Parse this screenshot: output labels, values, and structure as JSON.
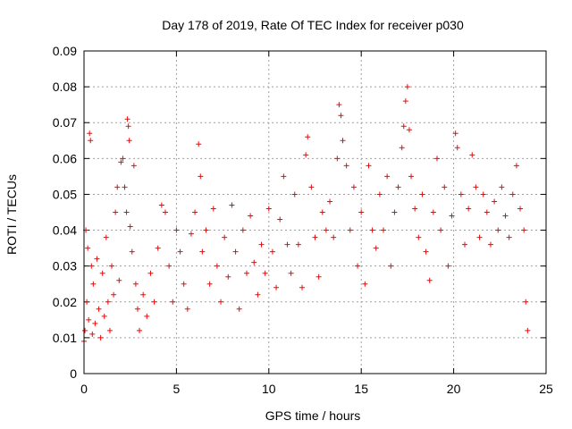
{
  "chart_data": {
    "type": "scatter",
    "title": "Day 178 of 2019, Rate Of TEC Index for receiver p030",
    "xlabel": "GPS time / hours",
    "ylabel": "ROTI / TECUs",
    "xlim": [
      0,
      25
    ],
    "ylim": [
      0,
      0.09
    ],
    "xticks": [
      0,
      5,
      10,
      15,
      20,
      25
    ],
    "xtick_labels": [
      "0",
      "5",
      "10",
      "15",
      "20",
      "25"
    ],
    "yticks": [
      0,
      0.01,
      0.02,
      0.03,
      0.04,
      0.05,
      0.06,
      0.07,
      0.08,
      0.09
    ],
    "ytick_labels": [
      "0",
      "0.01",
      "0.02",
      "0.03",
      "0.04",
      "0.05",
      "0.06",
      "0.07",
      "0.08",
      "0.09"
    ],
    "grid": true,
    "marker": "+",
    "color": "#ff0000",
    "series": [
      {
        "points": [
          [
            0.0,
            0.009
          ],
          [
            0.05,
            0.012
          ],
          [
            0.1,
            0.04
          ],
          [
            0.15,
            0.02
          ],
          [
            0.2,
            0.035
          ],
          [
            0.25,
            0.015
          ],
          [
            0.3,
            0.067
          ],
          [
            0.35,
            0.065
          ],
          [
            0.4,
            0.03
          ],
          [
            0.45,
            0.011
          ],
          [
            0.5,
            0.025
          ],
          [
            0.6,
            0.014
          ],
          [
            0.7,
            0.032
          ],
          [
            0.8,
            0.018
          ],
          [
            0.9,
            0.01
          ],
          [
            1.0,
            0.028
          ],
          [
            1.1,
            0.016
          ],
          [
            1.2,
            0.038
          ],
          [
            1.3,
            0.02
          ],
          [
            1.4,
            0.012
          ],
          [
            1.5,
            0.03
          ],
          [
            1.6,
            0.022
          ],
          [
            1.7,
            0.045
          ],
          [
            1.8,
            0.052
          ],
          [
            1.9,
            0.026
          ],
          [
            2.0,
            0.059
          ],
          [
            2.1,
            0.06
          ],
          [
            2.2,
            0.052
          ],
          [
            2.3,
            0.045
          ],
          [
            2.35,
            0.071
          ],
          [
            2.4,
            0.069
          ],
          [
            2.45,
            0.065
          ],
          [
            2.5,
            0.041
          ],
          [
            2.6,
            0.034
          ],
          [
            2.7,
            0.058
          ],
          [
            2.8,
            0.025
          ],
          [
            2.9,
            0.018
          ],
          [
            3.0,
            0.012
          ],
          [
            3.2,
            0.022
          ],
          [
            3.4,
            0.016
          ],
          [
            3.6,
            0.028
          ],
          [
            3.8,
            0.02
          ],
          [
            4.0,
            0.035
          ],
          [
            4.2,
            0.047
          ],
          [
            4.4,
            0.045
          ],
          [
            4.6,
            0.03
          ],
          [
            4.8,
            0.02
          ],
          [
            5.0,
            0.04
          ],
          [
            5.2,
            0.034
          ],
          [
            5.4,
            0.025
          ],
          [
            5.6,
            0.018
          ],
          [
            5.8,
            0.039
          ],
          [
            6.0,
            0.045
          ],
          [
            6.2,
            0.064
          ],
          [
            6.3,
            0.055
          ],
          [
            6.4,
            0.034
          ],
          [
            6.6,
            0.04
          ],
          [
            6.8,
            0.025
          ],
          [
            7.0,
            0.046
          ],
          [
            7.2,
            0.03
          ],
          [
            7.4,
            0.02
          ],
          [
            7.6,
            0.038
          ],
          [
            7.8,
            0.027
          ],
          [
            8.0,
            0.047
          ],
          [
            8.2,
            0.034
          ],
          [
            8.4,
            0.018
          ],
          [
            8.6,
            0.04
          ],
          [
            8.8,
            0.028
          ],
          [
            9.0,
            0.044
          ],
          [
            9.2,
            0.031
          ],
          [
            9.4,
            0.022
          ],
          [
            9.6,
            0.036
          ],
          [
            9.8,
            0.028
          ],
          [
            10.0,
            0.046
          ],
          [
            10.2,
            0.034
          ],
          [
            10.4,
            0.024
          ],
          [
            10.6,
            0.043
          ],
          [
            10.8,
            0.055
          ],
          [
            11.0,
            0.036
          ],
          [
            11.2,
            0.028
          ],
          [
            11.4,
            0.05
          ],
          [
            11.6,
            0.036
          ],
          [
            11.8,
            0.024
          ],
          [
            12.0,
            0.061
          ],
          [
            12.1,
            0.066
          ],
          [
            12.3,
            0.052
          ],
          [
            12.5,
            0.038
          ],
          [
            12.7,
            0.027
          ],
          [
            12.9,
            0.045
          ],
          [
            13.1,
            0.04
          ],
          [
            13.3,
            0.048
          ],
          [
            13.5,
            0.038
          ],
          [
            13.7,
            0.06
          ],
          [
            13.8,
            0.075
          ],
          [
            13.9,
            0.072
          ],
          [
            14.0,
            0.065
          ],
          [
            14.2,
            0.058
          ],
          [
            14.4,
            0.04
          ],
          [
            14.6,
            0.052
          ],
          [
            14.8,
            0.03
          ],
          [
            15.0,
            0.045
          ],
          [
            15.2,
            0.025
          ],
          [
            15.4,
            0.058
          ],
          [
            15.6,
            0.04
          ],
          [
            15.8,
            0.035
          ],
          [
            16.0,
            0.05
          ],
          [
            16.2,
            0.04
          ],
          [
            16.4,
            0.055
          ],
          [
            16.6,
            0.03
          ],
          [
            16.8,
            0.045
          ],
          [
            17.0,
            0.052
          ],
          [
            17.2,
            0.063
          ],
          [
            17.3,
            0.069
          ],
          [
            17.4,
            0.076
          ],
          [
            17.5,
            0.08
          ],
          [
            17.6,
            0.068
          ],
          [
            17.7,
            0.055
          ],
          [
            17.9,
            0.046
          ],
          [
            18.1,
            0.038
          ],
          [
            18.3,
            0.05
          ],
          [
            18.5,
            0.034
          ],
          [
            18.7,
            0.026
          ],
          [
            18.9,
            0.045
          ],
          [
            19.1,
            0.06
          ],
          [
            19.3,
            0.04
          ],
          [
            19.5,
            0.052
          ],
          [
            19.7,
            0.03
          ],
          [
            19.9,
            0.044
          ],
          [
            20.1,
            0.067
          ],
          [
            20.2,
            0.063
          ],
          [
            20.4,
            0.05
          ],
          [
            20.6,
            0.036
          ],
          [
            20.8,
            0.046
          ],
          [
            21.0,
            0.061
          ],
          [
            21.2,
            0.052
          ],
          [
            21.4,
            0.038
          ],
          [
            21.6,
            0.05
          ],
          [
            21.8,
            0.045
          ],
          [
            22.0,
            0.036
          ],
          [
            22.2,
            0.048
          ],
          [
            22.4,
            0.04
          ],
          [
            22.6,
            0.052
          ],
          [
            22.8,
            0.044
          ],
          [
            23.0,
            0.038
          ],
          [
            23.2,
            0.05
          ],
          [
            23.4,
            0.058
          ],
          [
            23.6,
            0.046
          ],
          [
            23.8,
            0.04
          ],
          [
            23.9,
            0.02
          ],
          [
            24.0,
            0.012
          ]
        ]
      }
    ]
  }
}
